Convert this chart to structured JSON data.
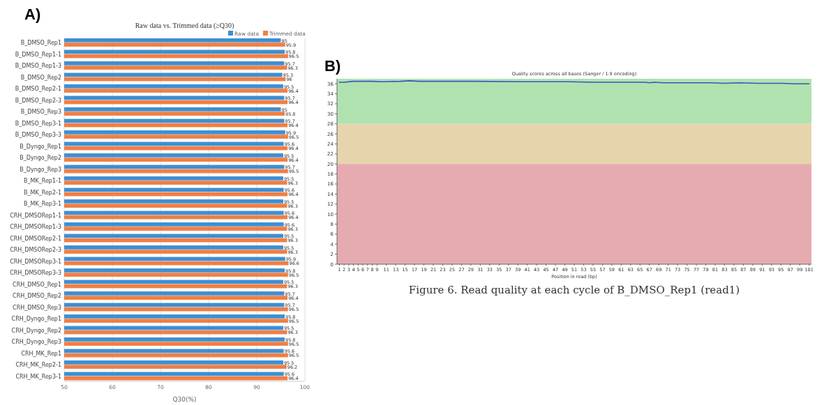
{
  "chart_data": [
    {
      "type": "bar",
      "orientation": "horizontal",
      "title": "Raw data vs. Trimmed data (≥Q30)",
      "xlabel": "Q30(%)",
      "annotations": [
        "A)"
      ],
      "categories": [
        "B_DMSO_Rep1",
        "B_DMSO_Rep1-1",
        "B_DMSO_Rep1-3",
        "B_DMSO_Rep2",
        "B_DMSO_Rep2-1",
        "B_DMSO_Rep2-3",
        "B_DMSO_Rep3",
        "B_DMSO_Rep3-1",
        "B_DMSO_Rep3-3",
        "B_Dyngo_Rep1",
        "B_Dyngo_Rep2",
        "B_Dyngo_Rep3",
        "B_MK_Rep1-1",
        "B_MK_Rep2-1",
        "B_MK_Rep3-1",
        "CRH_DMSORep1-1",
        "CRH_DMSORep1-3",
        "CRH_DMSORep2-1",
        "CRH_DMSORep2-3",
        "CRH_DMSORep3-1",
        "CRH_DMSORep3-3",
        "CRH_DMSO_Rep1",
        "CRH_DMSO_Rep2",
        "CRH_DMSO_Rep3",
        "CRH_Dyngo_Rep1",
        "CRH_Dyngo_Rep2",
        "CRH_Dyngo_Rep3",
        "CRH_MK_Rep1",
        "CRH_MK_Rep2-1",
        "CRH_MK_Rep3-1"
      ],
      "series": [
        {
          "name": "Raw data",
          "color": "#3f8fd2",
          "values": [
            95,
            95.8,
            95.7,
            95.3,
            95.5,
            95.7,
            95,
            95.7,
            95.9,
            95.6,
            95.5,
            95.7,
            95.5,
            95.6,
            95.5,
            95.6,
            95.6,
            95.5,
            95.5,
            95.9,
            95.8,
            95.5,
            95.7,
            95.7,
            95.8,
            95.5,
            95.8,
            95.6,
            95.5,
            95.6
          ]
        },
        {
          "name": "Trimmed data",
          "color": "#f07f45",
          "values": [
            95.9,
            96.5,
            96.3,
            96,
            96.4,
            96.4,
            95.8,
            96.4,
            96.5,
            96.4,
            96.4,
            96.5,
            96.3,
            96.4,
            96.3,
            96.4,
            96.3,
            96.3,
            96.3,
            96.6,
            96.5,
            96.3,
            96.4,
            96.5,
            96.5,
            96.3,
            96.5,
            96.5,
            96.2,
            96.4
          ]
        }
      ],
      "xlim": [
        50,
        100
      ],
      "xticks": [
        50,
        60,
        70,
        80,
        90,
        100
      ],
      "grid": "x",
      "legend": "top right",
      "data_labels": true
    },
    {
      "type": "line",
      "title": "Quality scores across all bases (Sanger / 1.9 encoding)",
      "xlabel": "Position in read (bp)",
      "annotations": [
        "B)",
        "Figure 6. Read quality at each cycle of B_DMSO_Rep1 (read1)"
      ],
      "series": [
        {
          "color": "#4050c0",
          "x": [
            1,
            2,
            4,
            8,
            10,
            14,
            16,
            18,
            30,
            40,
            50,
            55,
            66,
            67,
            68,
            70,
            80,
            83,
            86,
            90,
            95,
            98,
            101
          ],
          "values": [
            36.3,
            36.3,
            36.5,
            36.5,
            36.4,
            36.5,
            36.6,
            36.5,
            36.5,
            36.4,
            36.4,
            36.3,
            36.3,
            36.2,
            36.3,
            36.2,
            36.2,
            36.1,
            36.2,
            36.1,
            36.1,
            36,
            36
          ]
        }
      ],
      "xlim": [
        0.5,
        101.5
      ],
      "xticks": [
        1,
        2,
        3,
        4,
        5,
        6,
        7,
        8,
        9,
        11,
        13,
        15,
        17,
        19,
        21,
        23,
        25,
        27,
        29,
        31,
        33,
        35,
        37,
        39,
        41,
        43,
        45,
        47,
        49,
        51,
        53,
        55,
        57,
        59,
        61,
        63,
        65,
        67,
        69,
        71,
        73,
        75,
        77,
        79,
        81,
        83,
        85,
        87,
        89,
        91,
        93,
        95,
        97,
        99,
        101
      ],
      "ylim": [
        0,
        37
      ],
      "yticks": [
        0,
        2,
        4,
        6,
        8,
        10,
        12,
        14,
        16,
        18,
        20,
        22,
        24,
        26,
        28,
        30,
        32,
        34,
        36
      ],
      "bands": [
        {
          "axis": "y",
          "from": 28,
          "to": 37,
          "color": "#b0e2b0"
        },
        {
          "axis": "y",
          "from": 20,
          "to": 28,
          "color": "#e6d4ac"
        },
        {
          "axis": "y",
          "from": 0,
          "to": 20,
          "color": "#e6abb0"
        }
      ],
      "marker": "none",
      "line_style": "solid"
    }
  ]
}
